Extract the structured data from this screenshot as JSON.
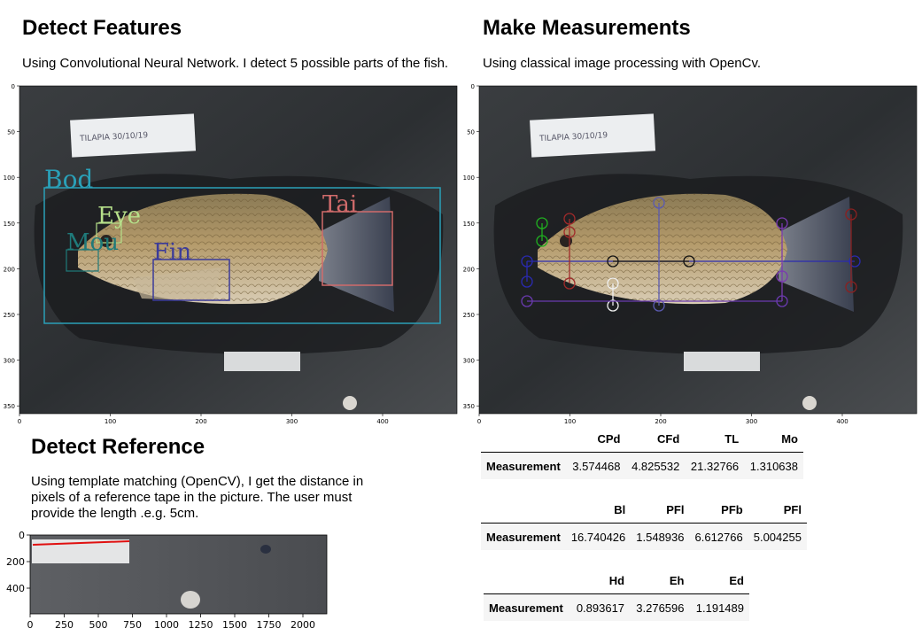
{
  "sections": {
    "detect_features": {
      "title": "Detect Features",
      "description": "Using Convolutional Neural Network. I detect 5 possible parts of the fish.",
      "labels": {
        "body": "Bod",
        "eye": "Eye",
        "mouth": "Mou",
        "fin": "Fin",
        "tail": "Tai"
      }
    },
    "make_measurements": {
      "title": "Make Measurements",
      "description": "Using classical image processing with OpenCv."
    },
    "detect_reference": {
      "title": "Detect Reference",
      "description": "Using template matching (OpenCV), I get the distance in pixels of a reference tape in the picture. The user must provide the length .e.g. 5cm."
    }
  },
  "note_text": "TILAPIA  30/10/19",
  "fish_plot_axes": {
    "yticks": [
      "0",
      "50",
      "100",
      "150",
      "200",
      "250",
      "300",
      "350"
    ],
    "xticks": [
      "0",
      "100",
      "200",
      "300",
      "400"
    ]
  },
  "ref_plot_axes": {
    "yticks": [
      "0",
      "200",
      "400"
    ],
    "xticks": [
      "0",
      "250",
      "500",
      "750",
      "1000",
      "1250",
      "1500",
      "1750",
      "2000"
    ]
  },
  "tables": [
    {
      "row_label": "Measurement",
      "columns": [
        "CPd",
        "CFd",
        "TL",
        "Mo"
      ],
      "values": [
        "3.574468",
        "4.825532",
        "21.32766",
        "1.310638"
      ]
    },
    {
      "row_label": "Measurement",
      "columns": [
        "Bl",
        "PFl",
        "PFb",
        "PFl"
      ],
      "values": [
        "16.740426",
        "1.548936",
        "6.612766",
        "5.004255"
      ]
    },
    {
      "row_label": "Measurement",
      "columns": [
        "Hd",
        "Eh",
        "Ed"
      ],
      "values": [
        "0.893617",
        "3.276596",
        "1.191489"
      ]
    }
  ],
  "colors": {
    "body_box": "#2aa0b8",
    "eye_box": "#b6e08a",
    "mouth_box": "#1f7a7a",
    "fin_box": "#3b3b9a",
    "tail_box": "#d06b6b",
    "ref_line": "#e01010"
  }
}
